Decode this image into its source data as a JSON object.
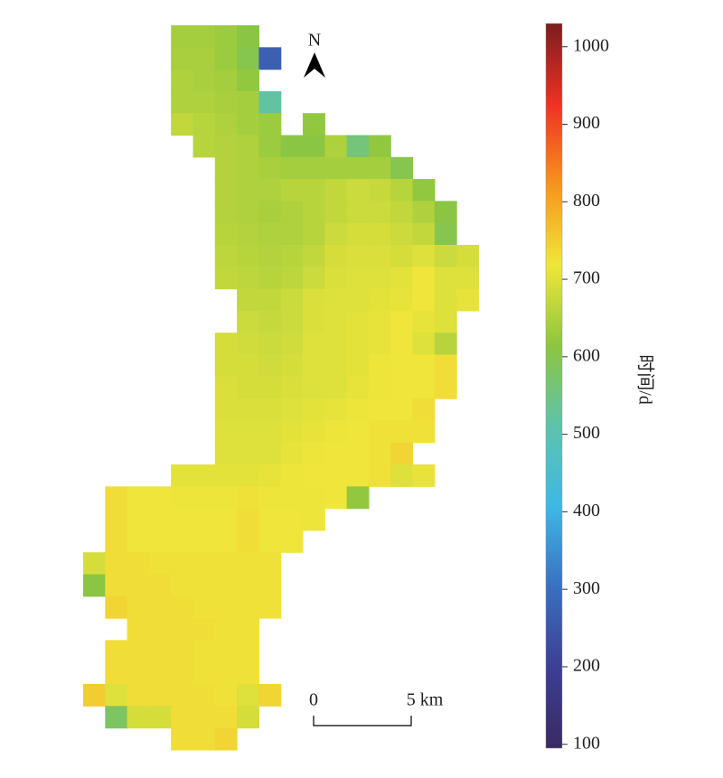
{
  "map": {
    "rows": [
      [
        null,
        null,
        null,
        null,
        640,
        640,
        630,
        610,
        null,
        null,
        null,
        null,
        null,
        null,
        null,
        null,
        null,
        null
      ],
      [
        null,
        null,
        null,
        null,
        645,
        645,
        630,
        600,
        270,
        null,
        null,
        null,
        null,
        null,
        null,
        null,
        null,
        null
      ],
      [
        null,
        null,
        null,
        null,
        650,
        645,
        640,
        620,
        null,
        null,
        null,
        null,
        null,
        null,
        null,
        null,
        null,
        null
      ],
      [
        null,
        null,
        null,
        null,
        650,
        650,
        645,
        640,
        520,
        null,
        null,
        null,
        null,
        null,
        null,
        null,
        null,
        null
      ],
      [
        null,
        null,
        null,
        null,
        670,
        660,
        650,
        640,
        630,
        null,
        620,
        null,
        null,
        null,
        null,
        null,
        null,
        null
      ],
      [
        null,
        null,
        null,
        null,
        null,
        660,
        655,
        650,
        630,
        610,
        610,
        650,
        560,
        620,
        null,
        null,
        null,
        null
      ],
      [
        null,
        null,
        null,
        null,
        null,
        null,
        655,
        650,
        645,
        640,
        640,
        640,
        640,
        640,
        600,
        null,
        null,
        null
      ],
      [
        null,
        null,
        null,
        null,
        null,
        null,
        655,
        650,
        650,
        660,
        660,
        670,
        680,
        675,
        660,
        620,
        null,
        null
      ],
      [
        null,
        null,
        null,
        null,
        null,
        null,
        655,
        650,
        645,
        650,
        660,
        670,
        680,
        680,
        670,
        650,
        610,
        null
      ],
      [
        null,
        null,
        null,
        null,
        null,
        null,
        660,
        655,
        650,
        650,
        660,
        680,
        690,
        690,
        680,
        670,
        600,
        null
      ],
      [
        null,
        null,
        null,
        null,
        null,
        null,
        665,
        660,
        655,
        660,
        670,
        690,
        695,
        695,
        690,
        700,
        680,
        690
      ],
      [
        null,
        null,
        null,
        null,
        null,
        null,
        670,
        665,
        660,
        665,
        680,
        695,
        700,
        700,
        705,
        720,
        700,
        700
      ],
      [
        null,
        null,
        null,
        null,
        null,
        null,
        null,
        670,
        670,
        680,
        695,
        700,
        700,
        705,
        710,
        720,
        700,
        710
      ],
      [
        null,
        null,
        null,
        null,
        null,
        null,
        null,
        680,
        675,
        680,
        695,
        700,
        705,
        710,
        720,
        710,
        700,
        null
      ],
      [
        null,
        null,
        null,
        null,
        null,
        null,
        690,
        685,
        680,
        685,
        700,
        700,
        705,
        710,
        720,
        700,
        660,
        null
      ],
      [
        null,
        null,
        null,
        null,
        null,
        null,
        690,
        690,
        685,
        690,
        700,
        700,
        705,
        715,
        720,
        720,
        730,
        null
      ],
      [
        null,
        null,
        null,
        null,
        null,
        null,
        695,
        690,
        690,
        695,
        700,
        700,
        710,
        715,
        720,
        720,
        730,
        null
      ],
      [
        null,
        null,
        null,
        null,
        null,
        null,
        695,
        695,
        695,
        700,
        705,
        710,
        715,
        720,
        720,
        730,
        null,
        null
      ],
      [
        null,
        null,
        null,
        null,
        null,
        null,
        700,
        700,
        700,
        705,
        710,
        715,
        720,
        725,
        725,
        725,
        null,
        null
      ],
      [
        null,
        null,
        null,
        null,
        null,
        null,
        700,
        700,
        700,
        710,
        715,
        720,
        720,
        725,
        740,
        null,
        null,
        null
      ],
      [
        null,
        null,
        null,
        null,
        705,
        705,
        705,
        705,
        710,
        715,
        720,
        720,
        720,
        725,
        700,
        710,
        null,
        null
      ],
      [
        null,
        730,
        720,
        720,
        715,
        715,
        715,
        725,
        715,
        715,
        715,
        720,
        620,
        null,
        null,
        null,
        null,
        null
      ],
      [
        null,
        730,
        720,
        720,
        720,
        720,
        720,
        730,
        720,
        720,
        715,
        null,
        null,
        null,
        null,
        null,
        null,
        null
      ],
      [
        null,
        730,
        720,
        720,
        720,
        720,
        720,
        730,
        720,
        720,
        null,
        null,
        null,
        null,
        null,
        null,
        null,
        null
      ],
      [
        690,
        730,
        730,
        725,
        725,
        725,
        725,
        725,
        725,
        null,
        null,
        null,
        null,
        null,
        null,
        null,
        null,
        null
      ],
      [
        610,
        730,
        730,
        730,
        725,
        725,
        725,
        725,
        725,
        null,
        null,
        null,
        null,
        null,
        null,
        null,
        null,
        null
      ],
      [
        null,
        740,
        730,
        730,
        730,
        725,
        725,
        725,
        725,
        null,
        null,
        null,
        null,
        null,
        null,
        null,
        null,
        null
      ],
      [
        null,
        null,
        730,
        730,
        730,
        730,
        725,
        725,
        null,
        null,
        null,
        null,
        null,
        null,
        null,
        null,
        null,
        null
      ],
      [
        null,
        730,
        730,
        730,
        730,
        725,
        725,
        725,
        null,
        null,
        null,
        null,
        null,
        null,
        null,
        null,
        null,
        null
      ],
      [
        null,
        730,
        730,
        730,
        730,
        725,
        725,
        725,
        null,
        null,
        null,
        null,
        null,
        null,
        null,
        null,
        null,
        null
      ],
      [
        750,
        700,
        730,
        730,
        730,
        730,
        725,
        700,
        740,
        null,
        null,
        null,
        null,
        null,
        null,
        null,
        null,
        null
      ],
      [
        null,
        580,
        690,
        690,
        730,
        730,
        730,
        690,
        null,
        null,
        null,
        null,
        null,
        null,
        null,
        null,
        null,
        null
      ],
      [
        null,
        null,
        null,
        null,
        730,
        730,
        740,
        null,
        null,
        null,
        null,
        null,
        null,
        null,
        null,
        null,
        null,
        null
      ]
    ],
    "clim": [
      95,
      1030
    ],
    "colormap": [
      "#3a2a62",
      "#3c3f94",
      "#3a6fc0",
      "#3eb8e6",
      "#5ec3ad",
      "#8cc63f",
      "#f0e63a",
      "#f7941d",
      "#ee3124",
      "#7b1d1d"
    ],
    "colorbar": {
      "label": "时间/d",
      "ticks": [
        100,
        200,
        300,
        400,
        500,
        600,
        700,
        800,
        900,
        1000
      ]
    },
    "north": "N",
    "scale_bar": {
      "start": "0",
      "end": "5 km"
    }
  }
}
